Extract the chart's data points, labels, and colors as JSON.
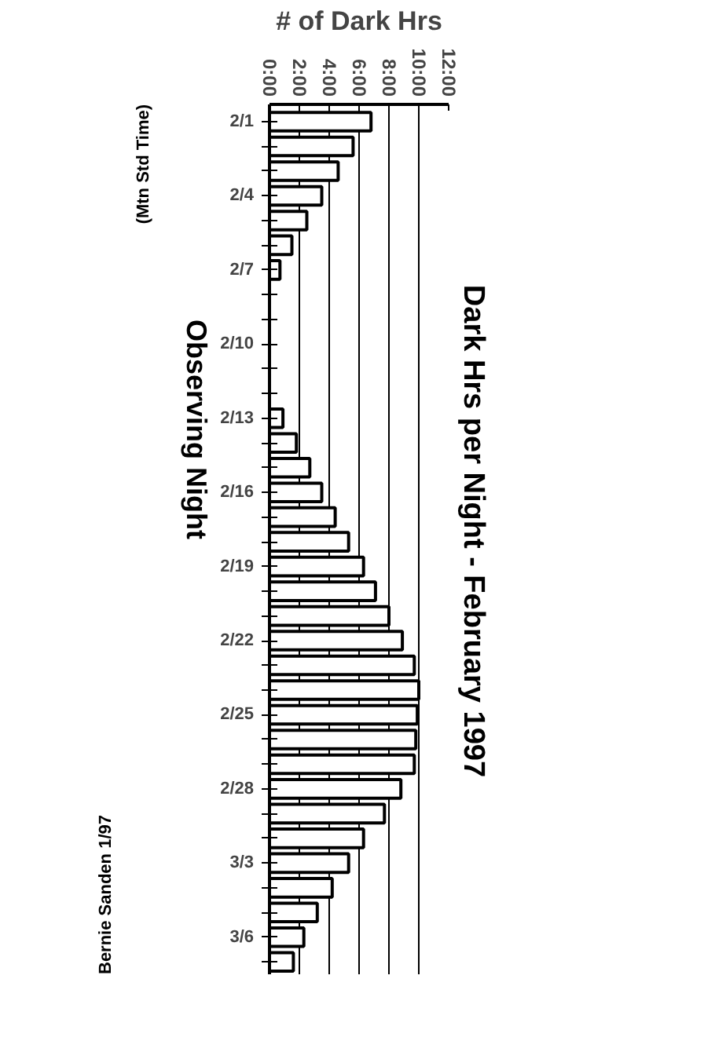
{
  "chart_data": {
    "type": "bar",
    "orientation": "horizontal",
    "title": "Dark Hrs per Night  -  February 1997",
    "xlabel": "# of Dark Hrs",
    "ylabel": "Observing Night",
    "annotations": [
      "(Mtn Std Time)",
      "Bernie Sanden 1/97"
    ],
    "categories": [
      "2/1",
      null,
      null,
      "2/4",
      null,
      null,
      "2/7",
      null,
      null,
      "2/10",
      null,
      null,
      "2/13",
      null,
      null,
      "2/16",
      null,
      null,
      "2/19",
      null,
      null,
      "2/22",
      null,
      null,
      "2/25",
      null,
      null,
      "2/28",
      null,
      null,
      "3/3",
      null,
      null,
      "3/6",
      null
    ],
    "values": [
      6.8,
      5.6,
      4.6,
      3.5,
      2.5,
      1.5,
      0.7,
      0,
      0,
      0,
      0,
      0,
      0.9,
      1.8,
      2.7,
      3.5,
      4.4,
      5.3,
      6.3,
      7.1,
      8.0,
      8.9,
      9.7,
      10.0,
      9.9,
      9.8,
      9.7,
      8.8,
      7.7,
      6.3,
      5.3,
      4.2,
      3.2,
      2.3,
      1.6
    ],
    "color": "#ffffff",
    "xlim": [
      0,
      12
    ],
    "xticks": [
      {
        "value": 0,
        "label": "0:00"
      },
      {
        "value": 2,
        "label": "2:00"
      },
      {
        "value": 4,
        "label": "4:00"
      },
      {
        "value": 6,
        "label": "6:00"
      },
      {
        "value": 8,
        "label": "8:00"
      },
      {
        "value": 10,
        "label": "10:00"
      },
      {
        "value": 12,
        "label": "12:00"
      }
    ],
    "grid": "x"
  }
}
